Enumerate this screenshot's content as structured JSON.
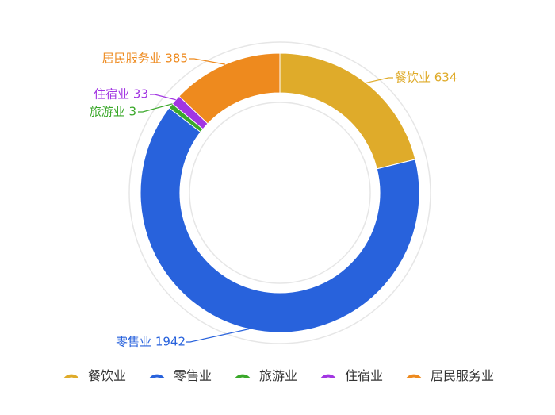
{
  "chart_data": {
    "type": "pie",
    "variant": "donut",
    "title": "",
    "series": [
      {
        "name": "餐饮业",
        "value": 634,
        "color": "#dfab2a"
      },
      {
        "name": "零售业",
        "value": 1942,
        "color": "#2862dc"
      },
      {
        "name": "旅游业",
        "value": 3,
        "color": "#3aa82a"
      },
      {
        "name": "住宿业",
        "value": 33,
        "color": "#a236e2"
      },
      {
        "name": "居民服务业",
        "value": 385,
        "color": "#ee8a1e"
      }
    ],
    "legend_position": "bottom",
    "data_label_format": "{name} {value}"
  }
}
